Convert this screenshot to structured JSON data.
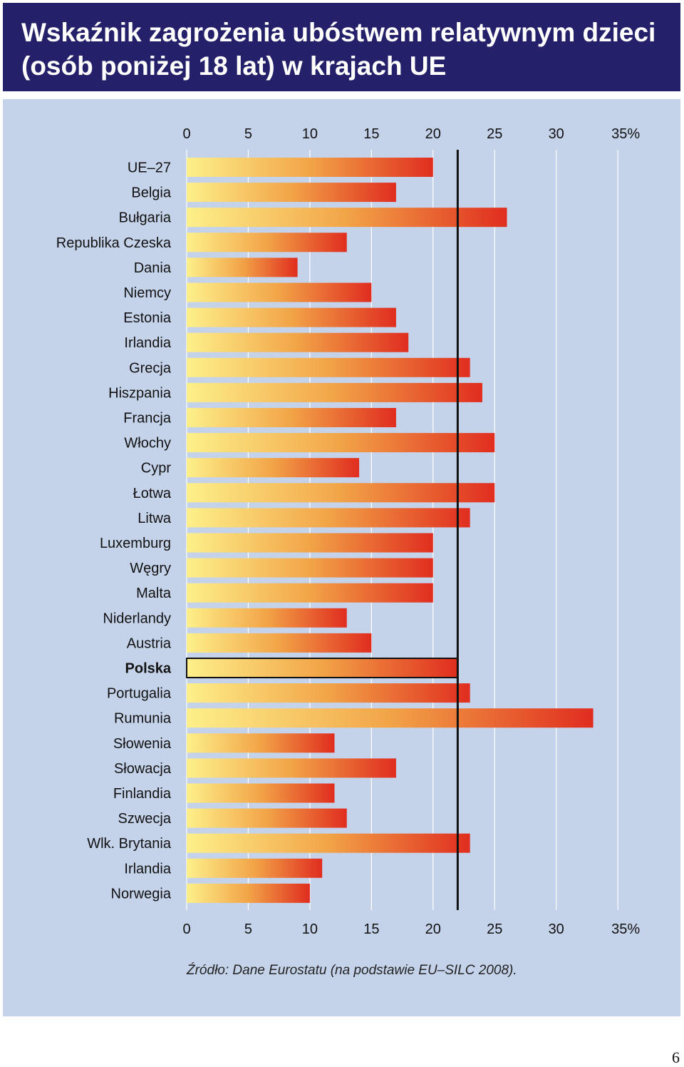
{
  "header": {
    "title": "Wskaźnik zagrożenia ubóstwem relatywnym dzieci\n(osób poniżej 18 lat) w krajach UE"
  },
  "chart_data": {
    "type": "bar",
    "orientation": "horizontal",
    "categories": [
      "UE–27",
      "Belgia",
      "Bułgaria",
      "Republika Czeska",
      "Dania",
      "Niemcy",
      "Estonia",
      "Irlandia",
      "Grecja",
      "Hiszpania",
      "Francja",
      "Włochy",
      "Cypr",
      "Łotwa",
      "Litwa",
      "Luxemburg",
      "Węgry",
      "Malta",
      "Niderlandy",
      "Austria",
      "Polska",
      "Portugalia",
      "Rumunia",
      "Słowenia",
      "Słowacja",
      "Finlandia",
      "Szwecja",
      "Wlk. Brytania",
      "Irlandia",
      "Norwegia"
    ],
    "values": [
      20,
      17,
      26,
      13,
      9,
      15,
      17,
      18,
      23,
      24,
      17,
      25,
      14,
      25,
      23,
      20,
      20,
      20,
      13,
      15,
      22,
      23,
      33,
      12,
      17,
      12,
      13,
      23,
      11,
      10
    ],
    "highlight": "Polska",
    "reference_line": 22,
    "xlim": [
      0,
      35
    ],
    "ticks": [
      "0",
      "5",
      "10",
      "15",
      "20",
      "25",
      "30",
      "35%"
    ],
    "grid": true,
    "colors": {
      "bar_start": "#fdf08a",
      "bar_mid": "#f2a447",
      "bar_end": "#e02d1f",
      "grid": "#ffffff",
      "reference": "#111111",
      "panel": "#c5d3ea"
    }
  },
  "source": "Źródło:  Dane Eurostatu (na podstawie EU–SILC 2008).",
  "page_number": "6"
}
